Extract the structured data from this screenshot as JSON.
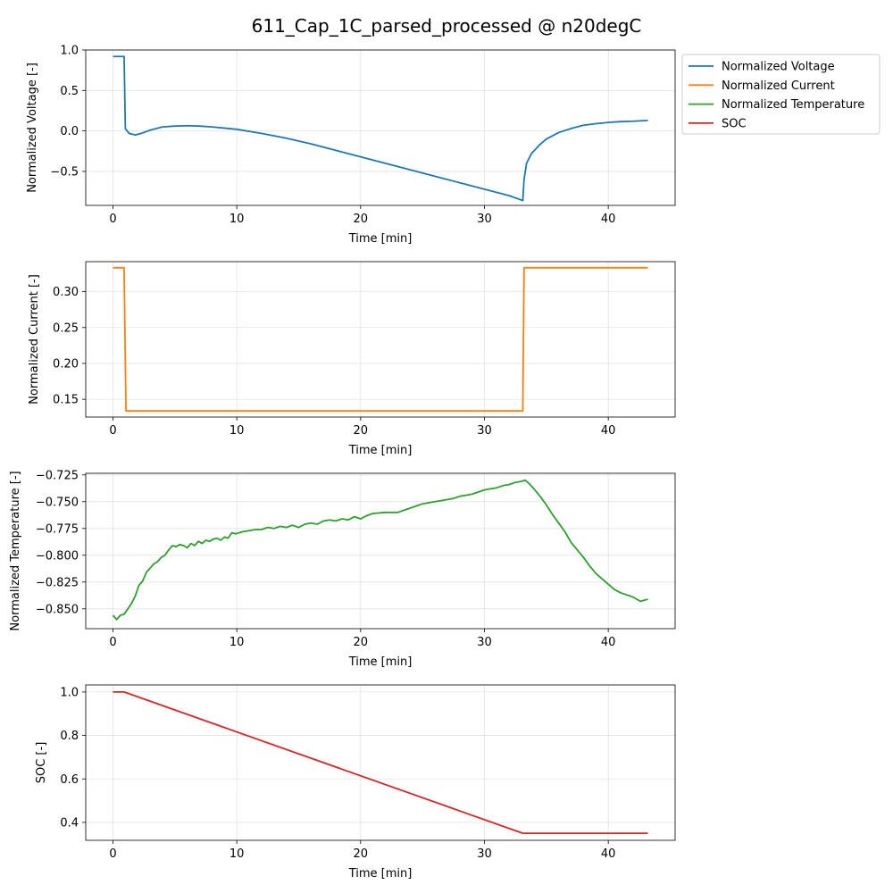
{
  "title": "611_Cap_1C_parsed_processed @ n20degC",
  "colors": {
    "voltage": "#1f77b4",
    "current": "#ff7f0e",
    "temperature": "#2ca02c",
    "soc": "#d62728"
  },
  "legend": {
    "placement": "outside-upper-right",
    "entries": [
      {
        "label": "Normalized Voltage",
        "color": "#1f77b4"
      },
      {
        "label": "Normalized Current",
        "color": "#ff7f0e"
      },
      {
        "label": "Normalized Temperature",
        "color": "#2ca02c"
      },
      {
        "label": "SOC",
        "color": "#d62728"
      }
    ]
  },
  "chart_data": [
    {
      "type": "line",
      "xlabel": "Time [min]",
      "ylabel": "Normalized Voltage [-]",
      "xlim": [
        -2.2,
        45.4
      ],
      "ylim": [
        -0.92,
        1.0
      ],
      "xticks": [
        0,
        10,
        20,
        30,
        40
      ],
      "yticks": [
        -0.5,
        0.0,
        0.5,
        1.0
      ],
      "ytick_labels": [
        "−0.5",
        "0.0",
        "0.5",
        "1.0"
      ],
      "grid": true,
      "series": [
        {
          "name": "Normalized Voltage",
          "color": "#1f77b4",
          "x": [
            0,
            0.9,
            1.0,
            1.3,
            1.8,
            2.3,
            3.0,
            4.0,
            5.0,
            6.0,
            7.0,
            8.0,
            10.0,
            12.0,
            14.0,
            16.0,
            18.0,
            20.0,
            22.0,
            24.0,
            26.0,
            28.0,
            30.0,
            32.0,
            33.1,
            33.2,
            33.4,
            33.8,
            34.4,
            35.0,
            36.0,
            37.0,
            38.0,
            39.0,
            40.0,
            41.0,
            42.0,
            43.2
          ],
          "y": [
            0.92,
            0.92,
            0.03,
            -0.03,
            -0.05,
            -0.03,
            0.01,
            0.05,
            0.06,
            0.065,
            0.06,
            0.05,
            0.02,
            -0.03,
            -0.09,
            -0.16,
            -0.24,
            -0.32,
            -0.4,
            -0.48,
            -0.56,
            -0.64,
            -0.72,
            -0.8,
            -0.86,
            -0.6,
            -0.4,
            -0.28,
            -0.18,
            -0.1,
            -0.02,
            0.03,
            0.07,
            0.09,
            0.105,
            0.115,
            0.12,
            0.13
          ]
        }
      ]
    },
    {
      "type": "line",
      "xlabel": "Time [min]",
      "ylabel": "Normalized Current [-]",
      "xlim": [
        -2.2,
        45.4
      ],
      "ylim": [
        0.1253,
        0.3418
      ],
      "xticks": [
        0,
        10,
        20,
        30,
        40
      ],
      "yticks": [
        0.15,
        0.2,
        0.25,
        0.3
      ],
      "ytick_labels": [
        "0.15",
        "0.20",
        "0.25",
        "0.30"
      ],
      "grid": true,
      "series": [
        {
          "name": "Normalized Current",
          "color": "#ff7f0e",
          "x": [
            0,
            0.9,
            1.05,
            33.1,
            33.2,
            43.2
          ],
          "y": [
            0.3333,
            0.3333,
            0.1338,
            0.1338,
            0.3333,
            0.3333
          ]
        }
      ]
    },
    {
      "type": "line",
      "xlabel": "Time [min]",
      "ylabel": "Normalized Temperature [-]",
      "xlim": [
        -2.2,
        45.4
      ],
      "ylim": [
        -0.8685,
        -0.7235
      ],
      "xticks": [
        0,
        10,
        20,
        30,
        40
      ],
      "yticks": [
        -0.85,
        -0.825,
        -0.8,
        -0.775,
        -0.75,
        -0.725
      ],
      "ytick_labels": [
        "−0.850",
        "−0.825",
        "−0.800",
        "−0.775",
        "−0.750",
        "−0.725"
      ],
      "grid": true,
      "series": [
        {
          "name": "Normalized Temperature",
          "color": "#2ca02c",
          "x": [
            0,
            0.3,
            0.6,
            0.9,
            1.2,
            1.5,
            1.8,
            2.1,
            2.4,
            2.7,
            3.0,
            3.3,
            3.6,
            3.9,
            4.2,
            4.5,
            4.8,
            5.1,
            5.4,
            5.7,
            6.0,
            6.3,
            6.6,
            6.9,
            7.2,
            7.5,
            7.8,
            8.1,
            8.4,
            8.7,
            9.0,
            9.3,
            9.6,
            9.9,
            10.5,
            11.0,
            11.5,
            12.0,
            12.5,
            13.0,
            13.5,
            14.0,
            14.5,
            15.0,
            15.5,
            16.0,
            16.5,
            17.0,
            17.5,
            18.0,
            18.5,
            19.0,
            19.5,
            20.0,
            20.5,
            21.0,
            22.0,
            23.0,
            23.5,
            24.0,
            24.5,
            25.0,
            25.5,
            26.0,
            26.5,
            27.0,
            27.5,
            28.0,
            28.5,
            29.0,
            29.5,
            30.0,
            30.5,
            31.0,
            31.5,
            32.0,
            32.5,
            33.0,
            33.3,
            33.6,
            34.0,
            34.5,
            35.0,
            35.5,
            36.0,
            36.5,
            37.0,
            37.5,
            38.0,
            38.5,
            39.0,
            39.5,
            40.0,
            40.5,
            41.0,
            41.5,
            42.0,
            42.3,
            42.6,
            43.2
          ],
          "y": [
            -0.856,
            -0.86,
            -0.856,
            -0.855,
            -0.85,
            -0.845,
            -0.838,
            -0.828,
            -0.824,
            -0.816,
            -0.812,
            -0.808,
            -0.806,
            -0.802,
            -0.8,
            -0.795,
            -0.791,
            -0.792,
            -0.79,
            -0.791,
            -0.793,
            -0.789,
            -0.791,
            -0.787,
            -0.789,
            -0.786,
            -0.787,
            -0.785,
            -0.784,
            -0.786,
            -0.783,
            -0.784,
            -0.779,
            -0.78,
            -0.778,
            -0.777,
            -0.776,
            -0.776,
            -0.774,
            -0.775,
            -0.773,
            -0.774,
            -0.772,
            -0.774,
            -0.771,
            -0.77,
            -0.771,
            -0.768,
            -0.767,
            -0.768,
            -0.766,
            -0.767,
            -0.764,
            -0.766,
            -0.763,
            -0.761,
            -0.76,
            -0.76,
            -0.758,
            -0.756,
            -0.754,
            -0.752,
            -0.751,
            -0.75,
            -0.749,
            -0.748,
            -0.747,
            -0.745,
            -0.744,
            -0.743,
            -0.741,
            -0.739,
            -0.738,
            -0.737,
            -0.735,
            -0.734,
            -0.732,
            -0.731,
            -0.73,
            -0.733,
            -0.738,
            -0.745,
            -0.753,
            -0.762,
            -0.77,
            -0.778,
            -0.788,
            -0.795,
            -0.802,
            -0.81,
            -0.817,
            -0.822,
            -0.827,
            -0.832,
            -0.835,
            -0.837,
            -0.839,
            -0.841,
            -0.843,
            -0.841
          ]
        }
      ]
    },
    {
      "type": "line",
      "xlabel": "Time [min]",
      "ylabel": "SOC [-]",
      "xlim": [
        -2.2,
        45.4
      ],
      "ylim": [
        0.3175,
        1.0325
      ],
      "xticks": [
        0,
        10,
        20,
        30,
        40
      ],
      "yticks": [
        0.4,
        0.6,
        0.8,
        1.0
      ],
      "ytick_labels": [
        "0.4",
        "0.6",
        "0.8",
        "1.0"
      ],
      "grid": true,
      "series": [
        {
          "name": "SOC",
          "color": "#d62728",
          "x": [
            0,
            0.9,
            33.1,
            43.2
          ],
          "y": [
            1.0,
            1.0,
            0.35,
            0.35
          ]
        }
      ]
    }
  ]
}
